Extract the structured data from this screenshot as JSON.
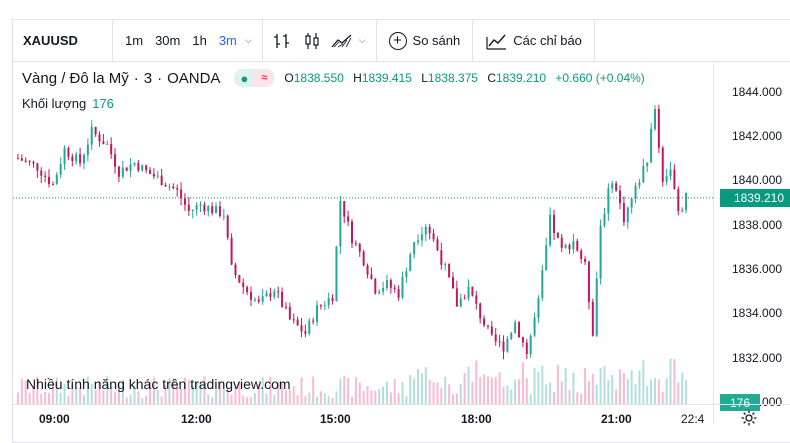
{
  "toolbar": {
    "symbol": "XAUUSD",
    "timeframes": [
      "1m",
      "30m",
      "1h",
      "3m"
    ],
    "active_timeframe": "3m",
    "compare_label": "So sánh",
    "indicators_label": "Các chỉ báo"
  },
  "legend": {
    "name": "Vàng / Đô la Mỹ",
    "interval": "3",
    "source": "OANDA",
    "o_label": "O",
    "o_value": "1838.550",
    "h_label": "H",
    "h_value": "1839.415",
    "l_label": "L",
    "l_value": "1838.375",
    "c_label": "C",
    "c_value": "1839.210",
    "change": "+0.660 (+0.04%)",
    "volume_label": "Khối lượng",
    "volume_value": "176"
  },
  "watermark": "Nhiều tính năng khác trên tradingview.com",
  "colors": {
    "up": "#26a69a",
    "down": "#c2185b",
    "accent": "#2962ff",
    "price_line": "#089981"
  },
  "chart_data": {
    "type": "candlestick",
    "y_ticks": [
      "1844.000",
      "1842.000",
      "1840.000",
      "1838.000",
      "1836.000",
      "1834.000",
      "1832.000",
      "1830.000"
    ],
    "x_ticks": [
      "09:00",
      "12:00",
      "15:00",
      "18:00",
      "21:00",
      "22:4"
    ],
    "ylim": [
      1829.9,
      1845.3
    ],
    "last_price": "1839.210",
    "last_volume": "176",
    "close_path": [
      [
        0,
        1841.0
      ],
      [
        5,
        1840.6
      ],
      [
        9,
        1839.8
      ],
      [
        12,
        1841.4
      ],
      [
        16,
        1840.8
      ],
      [
        19,
        1842.2
      ],
      [
        23,
        1841.6
      ],
      [
        26,
        1840.4
      ],
      [
        30,
        1840.8
      ],
      [
        33,
        1840.4
      ],
      [
        37,
        1840.0
      ],
      [
        41,
        1839.5
      ],
      [
        44,
        1838.6
      ],
      [
        47,
        1838.9
      ],
      [
        51,
        1838.6
      ],
      [
        53,
        1838.5
      ],
      [
        55,
        1836.0
      ],
      [
        58,
        1835.2
      ],
      [
        62,
        1834.4
      ],
      [
        66,
        1835.1
      ],
      [
        70,
        1833.7
      ],
      [
        74,
        1833.1
      ],
      [
        77,
        1834.2
      ],
      [
        81,
        1834.8
      ],
      [
        83,
        1839.1
      ],
      [
        86,
        1837.4
      ],
      [
        89,
        1836.4
      ],
      [
        92,
        1835.1
      ],
      [
        95,
        1835.3
      ],
      [
        98,
        1834.9
      ],
      [
        102,
        1837.3
      ],
      [
        105,
        1838.0
      ],
      [
        107,
        1837.3
      ],
      [
        110,
        1836.0
      ],
      [
        113,
        1834.4
      ],
      [
        116,
        1835.1
      ],
      [
        119,
        1833.9
      ],
      [
        122,
        1832.8
      ],
      [
        125,
        1832.5
      ],
      [
        128,
        1833.6
      ],
      [
        131,
        1832.2
      ],
      [
        134,
        1834.5
      ],
      [
        137,
        1838.2
      ],
      [
        140,
        1836.8
      ],
      [
        143,
        1837.3
      ],
      [
        146,
        1836.1
      ],
      [
        148,
        1833.2
      ],
      [
        150,
        1838.0
      ],
      [
        153,
        1840.1
      ],
      [
        156,
        1838.3
      ],
      [
        159,
        1839.6
      ],
      [
        162,
        1841.0
      ],
      [
        164,
        1843.2
      ],
      [
        166,
        1840.0
      ],
      [
        168,
        1840.6
      ],
      [
        170,
        1838.4
      ],
      [
        172,
        1839.21
      ]
    ]
  }
}
